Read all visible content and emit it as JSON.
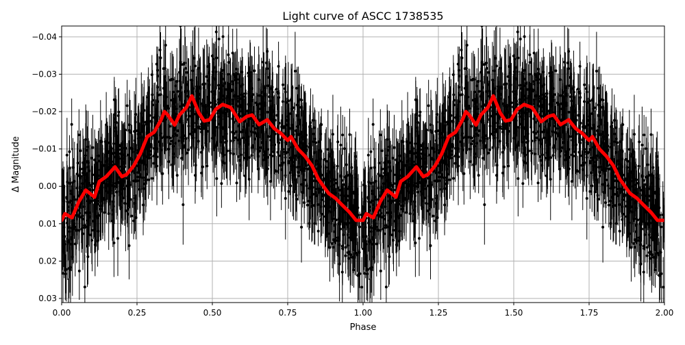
{
  "chart_data": {
    "type": "scatter",
    "title": "Light curve of ASCC 1738535",
    "xlabel": "Phase",
    "ylabel": "Δ Magnitude",
    "xlim": [
      0,
      2
    ],
    "ylim": [
      0.0311,
      -0.0429
    ],
    "y_inverted": true,
    "grid": true,
    "xticks": [
      "0.00",
      "0.25",
      "0.50",
      "0.75",
      "1.00",
      "1.25",
      "1.50",
      "1.75",
      "2.00"
    ],
    "xtick_values": [
      0,
      0.25,
      0.5,
      0.75,
      1,
      1.25,
      1.5,
      1.75,
      2
    ],
    "yticks": [
      "−0.04",
      "−0.03",
      "−0.02",
      "−0.01",
      "0.00",
      "0.01",
      "0.02",
      "0.03"
    ],
    "ytick_values": [
      -0.04,
      -0.03,
      -0.02,
      -0.01,
      0,
      0.01,
      0.02,
      0.03
    ],
    "colors": {
      "points": "#000000",
      "model": "#ff0000",
      "grid": "#b0b0b0"
    },
    "series": [
      {
        "kind": "errorbar-scatter",
        "color": "#000000"
      },
      {
        "kind": "line",
        "color": "#ff0000",
        "x": [
          0.0,
          0.011,
          0.034,
          0.057,
          0.08,
          0.109,
          0.125,
          0.148,
          0.177,
          0.2,
          0.216,
          0.239,
          0.261,
          0.284,
          0.307,
          0.33,
          0.341,
          0.352,
          0.375,
          0.391,
          0.414,
          0.432,
          0.455,
          0.473,
          0.491,
          0.511,
          0.534,
          0.561,
          0.591,
          0.614,
          0.632,
          0.655,
          0.682,
          0.705,
          0.727,
          0.75,
          0.761,
          0.784,
          0.807,
          0.83,
          0.852,
          0.886,
          0.909,
          0.932,
          0.955,
          0.977,
          1.0,
          1.011,
          1.034,
          1.057,
          1.08,
          1.109,
          1.125,
          1.148,
          1.177,
          1.2,
          1.216,
          1.239,
          1.261,
          1.284,
          1.307,
          1.33,
          1.341,
          1.352,
          1.375,
          1.391,
          1.414,
          1.432,
          1.455,
          1.473,
          1.491,
          1.511,
          1.534,
          1.561,
          1.591,
          1.614,
          1.632,
          1.655,
          1.682,
          1.705,
          1.727,
          1.75,
          1.761,
          1.784,
          1.807,
          1.83,
          1.852,
          1.886,
          1.909,
          1.932,
          1.955,
          1.977,
          2.0
        ],
        "y": [
          0.0091,
          0.0073,
          0.0084,
          0.0041,
          0.001,
          0.0029,
          -0.0013,
          -0.0026,
          -0.0052,
          -0.0026,
          -0.0032,
          -0.0055,
          -0.0087,
          -0.0133,
          -0.0145,
          -0.0178,
          -0.02,
          -0.0191,
          -0.0164,
          -0.0191,
          -0.0211,
          -0.0242,
          -0.0197,
          -0.0175,
          -0.0178,
          -0.0206,
          -0.0219,
          -0.0211,
          -0.0173,
          -0.0187,
          -0.0191,
          -0.0165,
          -0.0178,
          -0.0155,
          -0.0142,
          -0.0123,
          -0.0133,
          -0.01,
          -0.0081,
          -0.0056,
          -0.0019,
          0.0019,
          0.0032,
          0.0051,
          0.0069,
          0.0091,
          0.0091,
          0.0073,
          0.0084,
          0.0041,
          0.001,
          0.0029,
          -0.0013,
          -0.0026,
          -0.0052,
          -0.0026,
          -0.0032,
          -0.0055,
          -0.0087,
          -0.0133,
          -0.0145,
          -0.0178,
          -0.02,
          -0.0191,
          -0.0164,
          -0.0191,
          -0.0211,
          -0.0242,
          -0.0197,
          -0.0175,
          -0.0178,
          -0.0206,
          -0.0219,
          -0.0211,
          -0.0173,
          -0.0187,
          -0.0191,
          -0.0165,
          -0.0178,
          -0.0155,
          -0.0142,
          -0.0123,
          -0.0133,
          -0.01,
          -0.0081,
          -0.0056,
          -0.0019,
          0.0019,
          0.0032,
          0.0051,
          0.0069,
          0.0091,
          0.0091
        ]
      }
    ]
  }
}
